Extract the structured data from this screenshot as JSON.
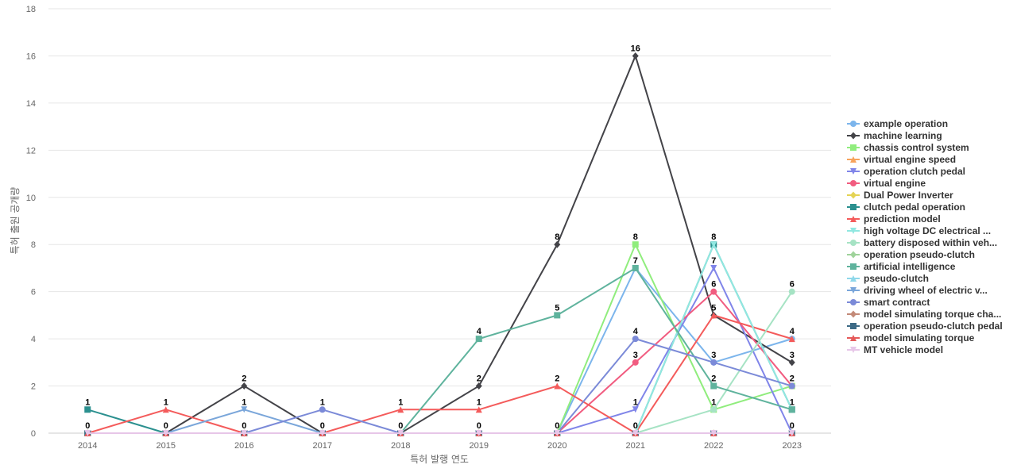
{
  "chart_data": {
    "type": "line",
    "xlabel": "특허 발행 연도",
    "ylabel": "특허 출원 공개량",
    "x": [
      "2014",
      "2015",
      "2016",
      "2017",
      "2018",
      "2019",
      "2020",
      "2021",
      "2022",
      "2023"
    ],
    "ylim": [
      0,
      18
    ],
    "yticks": [
      0,
      2,
      4,
      6,
      8,
      10,
      12,
      14,
      16,
      18
    ],
    "grid": true,
    "legend_position": "right",
    "series": [
      {
        "name": "example operation",
        "color": "#7cb5ec",
        "marker": "circle",
        "values": [
          0,
          0,
          0,
          0,
          0,
          0,
          0,
          7,
          3,
          4
        ]
      },
      {
        "name": "machine learning",
        "color": "#434348",
        "marker": "diamond",
        "values": [
          0,
          0,
          2,
          0,
          0,
          2,
          8,
          16,
          5,
          3
        ]
      },
      {
        "name": "chassis control system",
        "color": "#90ed7d",
        "marker": "square",
        "values": [
          0,
          0,
          0,
          0,
          0,
          0,
          0,
          8,
          1,
          2
        ]
      },
      {
        "name": "virtual engine speed",
        "color": "#f7a35c",
        "marker": "triangle",
        "values": [
          0,
          0,
          0,
          0,
          0,
          0,
          0,
          0,
          0,
          0
        ]
      },
      {
        "name": "operation clutch pedal",
        "color": "#8085e9",
        "marker": "triangle-down",
        "values": [
          0,
          0,
          0,
          0,
          0,
          0,
          0,
          1,
          7,
          0
        ]
      },
      {
        "name": "virtual engine",
        "color": "#f15c80",
        "marker": "circle",
        "values": [
          0,
          0,
          0,
          0,
          0,
          0,
          0,
          3,
          6,
          2
        ]
      },
      {
        "name": "Dual Power Inverter",
        "color": "#e4d354",
        "marker": "diamond",
        "values": [
          0,
          0,
          0,
          0,
          0,
          0,
          0,
          0,
          0,
          0
        ]
      },
      {
        "name": "clutch pedal operation",
        "color": "#2b908f",
        "marker": "square",
        "values": [
          1,
          0,
          0,
          0,
          0,
          0,
          0,
          0,
          8,
          1
        ]
      },
      {
        "name": "prediction model",
        "color": "#f45b5b",
        "marker": "triangle",
        "values": [
          0,
          1,
          0,
          0,
          1,
          1,
          2,
          0,
          5,
          4
        ]
      },
      {
        "name": "high voltage DC electrical ...",
        "color": "#91e8e1",
        "marker": "triangle-down",
        "values": [
          0,
          0,
          0,
          0,
          0,
          0,
          0,
          0,
          8,
          1
        ]
      },
      {
        "name": "battery disposed within veh...",
        "color": "#a6e3c4",
        "marker": "circle",
        "values": [
          0,
          0,
          0,
          0,
          0,
          0,
          0,
          0,
          1,
          6
        ]
      },
      {
        "name": "operation pseudo-clutch",
        "color": "#9fd39b",
        "marker": "diamond",
        "values": [
          0,
          0,
          0,
          0,
          0,
          0,
          0,
          0,
          0,
          0
        ]
      },
      {
        "name": "artificial intelligence",
        "color": "#5fb39d",
        "marker": "square",
        "values": [
          0,
          0,
          0,
          0,
          0,
          4,
          5,
          7,
          2,
          1
        ]
      },
      {
        "name": "pseudo-clutch",
        "color": "#8fd8ea",
        "marker": "triangle",
        "values": [
          0,
          0,
          0,
          0,
          0,
          0,
          0,
          0,
          0,
          0
        ]
      },
      {
        "name": "driving wheel of electric v...",
        "color": "#7aa6da",
        "marker": "triangle-down",
        "values": [
          0,
          0,
          1,
          0,
          0,
          0,
          0,
          0,
          0,
          0
        ]
      },
      {
        "name": "smart contract",
        "color": "#7b8ad8",
        "marker": "circle",
        "values": [
          0,
          0,
          0,
          1,
          0,
          0,
          0,
          4,
          3,
          2
        ]
      },
      {
        "name": "model simulating torque cha...",
        "color": "#c38a78",
        "marker": "diamond",
        "values": [
          0,
          0,
          0,
          0,
          0,
          0,
          0,
          0,
          0,
          0
        ]
      },
      {
        "name": "operation pseudo-clutch pedal",
        "color": "#3d6a86",
        "marker": "square",
        "values": [
          0,
          0,
          0,
          0,
          0,
          0,
          0,
          0,
          0,
          0
        ]
      },
      {
        "name": "model simulating torque",
        "color": "#e55a5a",
        "marker": "triangle",
        "values": [
          0,
          0,
          0,
          0,
          0,
          0,
          0,
          0,
          0,
          0
        ]
      },
      {
        "name": "MT vehicle model",
        "color": "#e7c6e8",
        "marker": "triangle-down",
        "values": [
          0,
          0,
          0,
          0,
          0,
          0,
          0,
          0,
          0,
          0
        ]
      }
    ],
    "data_labels": [
      {
        "x": "2014",
        "y": 1,
        "text": "1"
      },
      {
        "x": "2014",
        "y": 0,
        "text": "0"
      },
      {
        "x": "2015",
        "y": 1,
        "text": "1"
      },
      {
        "x": "2015",
        "y": 0,
        "text": "0"
      },
      {
        "x": "2016",
        "y": 2,
        "text": "2"
      },
      {
        "x": "2016",
        "y": 1,
        "text": "1"
      },
      {
        "x": "2016",
        "y": 0,
        "text": "0"
      },
      {
        "x": "2017",
        "y": 1,
        "text": "1"
      },
      {
        "x": "2017",
        "y": 0,
        "text": "0"
      },
      {
        "x": "2018",
        "y": 1,
        "text": "1"
      },
      {
        "x": "2018",
        "y": 0,
        "text": "0"
      },
      {
        "x": "2019",
        "y": 4,
        "text": "4"
      },
      {
        "x": "2019",
        "y": 2,
        "text": "2"
      },
      {
        "x": "2019",
        "y": 1,
        "text": "1"
      },
      {
        "x": "2019",
        "y": 0,
        "text": "0"
      },
      {
        "x": "2020",
        "y": 8,
        "text": "8"
      },
      {
        "x": "2020",
        "y": 5,
        "text": "5"
      },
      {
        "x": "2020",
        "y": 2,
        "text": "2"
      },
      {
        "x": "2020",
        "y": 0,
        "text": "0"
      },
      {
        "x": "2021",
        "y": 16,
        "text": "16"
      },
      {
        "x": "2021",
        "y": 8,
        "text": "8"
      },
      {
        "x": "2021",
        "y": 7,
        "text": "7"
      },
      {
        "x": "2021",
        "y": 4,
        "text": "4"
      },
      {
        "x": "2021",
        "y": 3,
        "text": "3"
      },
      {
        "x": "2021",
        "y": 1,
        "text": "1"
      },
      {
        "x": "2021",
        "y": 0,
        "text": "0"
      },
      {
        "x": "2022",
        "y": 8,
        "text": "8"
      },
      {
        "x": "2022",
        "y": 7,
        "text": "7"
      },
      {
        "x": "2022",
        "y": 6,
        "text": "6"
      },
      {
        "x": "2022",
        "y": 5,
        "text": "5"
      },
      {
        "x": "2022",
        "y": 3,
        "text": "3"
      },
      {
        "x": "2022",
        "y": 2,
        "text": "2"
      },
      {
        "x": "2022",
        "y": 1,
        "text": "1"
      },
      {
        "x": "2023",
        "y": 6,
        "text": "6"
      },
      {
        "x": "2023",
        "y": 4,
        "text": "4"
      },
      {
        "x": "2023",
        "y": 3,
        "text": "3"
      },
      {
        "x": "2023",
        "y": 2,
        "text": "2"
      },
      {
        "x": "2023",
        "y": 1,
        "text": "1"
      },
      {
        "x": "2023",
        "y": 0,
        "text": "0"
      }
    ]
  }
}
